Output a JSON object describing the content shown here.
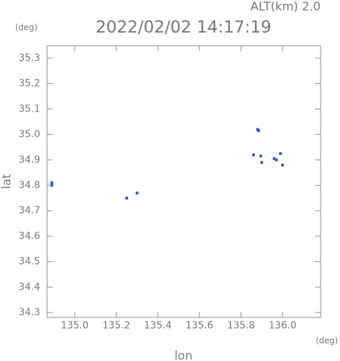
{
  "chart_data": {
    "type": "scatter",
    "title": "2022/02/02 14:17:19",
    "altitude_label": "ALT(km) 2.0",
    "y_unit": "(deg)",
    "x_unit": "(deg)",
    "xlabel": "lon",
    "ylabel": "lat",
    "x": [
      134.89,
      134.89,
      135.25,
      135.3,
      135.88,
      135.885,
      135.86,
      135.895,
      135.9,
      135.96,
      135.97,
      135.99,
      136.0
    ],
    "values": [
      34.8,
      34.81,
      34.75,
      34.77,
      35.02,
      35.015,
      34.92,
      34.915,
      34.89,
      34.905,
      34.9,
      34.925,
      34.88
    ],
    "color": "#3355dd",
    "xlim": [
      134.867,
      136.183
    ],
    "ylim": [
      34.281,
      35.349
    ],
    "xticks": [
      {
        "value": 135.0,
        "label": "135.0"
      },
      135.2,
      135.4,
      135.6,
      135.8,
      {
        "value": 136.0,
        "label": "136.0"
      }
    ],
    "yticks": [
      34.3,
      34.4,
      34.5,
      34.6,
      34.7,
      34.8,
      34.9,
      {
        "value": 35.0,
        "label": "35.0"
      },
      35.1,
      35.2,
      35.3
    ]
  }
}
